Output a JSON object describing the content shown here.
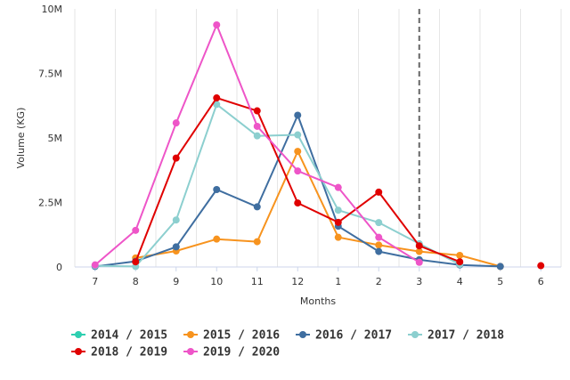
{
  "chart_data": {
    "type": "line",
    "title": "",
    "xlabel": "Months",
    "ylabel": "Volume (KG)",
    "categories": [
      "7",
      "8",
      "9",
      "10",
      "11",
      "12",
      "1",
      "2",
      "3",
      "4",
      "5",
      "6"
    ],
    "y_ticks": [
      0,
      2.5,
      5,
      7.5,
      10
    ],
    "y_tick_labels": [
      "0",
      "2.5M",
      "5M",
      "7.5M",
      "10M"
    ],
    "ylim": [
      0,
      10
    ],
    "y_unit": "millions of KG",
    "grid": "vertical",
    "reference_line": {
      "category": "3",
      "style": "dashed"
    },
    "legend_position": "bottom",
    "series": [
      {
        "name": "2014 / 2015",
        "color": "#2ecfb0",
        "values": [
          null,
          null,
          null,
          null,
          null,
          null,
          null,
          null,
          null,
          null,
          null,
          null
        ]
      },
      {
        "name": "2015 / 2016",
        "color": "#f7931e",
        "values": [
          null,
          0.35,
          0.62,
          1.08,
          0.98,
          4.48,
          1.15,
          0.85,
          0.6,
          0.45,
          0.02,
          null
        ]
      },
      {
        "name": "2016 / 2017",
        "color": "#3f6ea0",
        "values": [
          0.02,
          0.22,
          0.78,
          3.0,
          2.33,
          5.88,
          1.58,
          0.6,
          0.28,
          0.08,
          0.02,
          null
        ]
      },
      {
        "name": "2017 / 2018",
        "color": "#8ccfcf",
        "values": [
          0.05,
          0.02,
          1.82,
          6.3,
          5.08,
          5.12,
          2.2,
          1.72,
          0.9,
          0.1,
          null,
          null
        ]
      },
      {
        "name": "2018 / 2019",
        "color": "#e00000",
        "values": [
          null,
          0.2,
          4.22,
          6.55,
          6.05,
          2.48,
          1.73,
          2.9,
          0.82,
          0.2,
          null,
          0.05
        ]
      },
      {
        "name": "2019 / 2020",
        "color": "#ee55c8",
        "values": [
          0.08,
          1.42,
          5.58,
          9.38,
          5.45,
          3.72,
          3.08,
          1.15,
          0.18,
          null,
          null,
          null
        ]
      }
    ]
  }
}
